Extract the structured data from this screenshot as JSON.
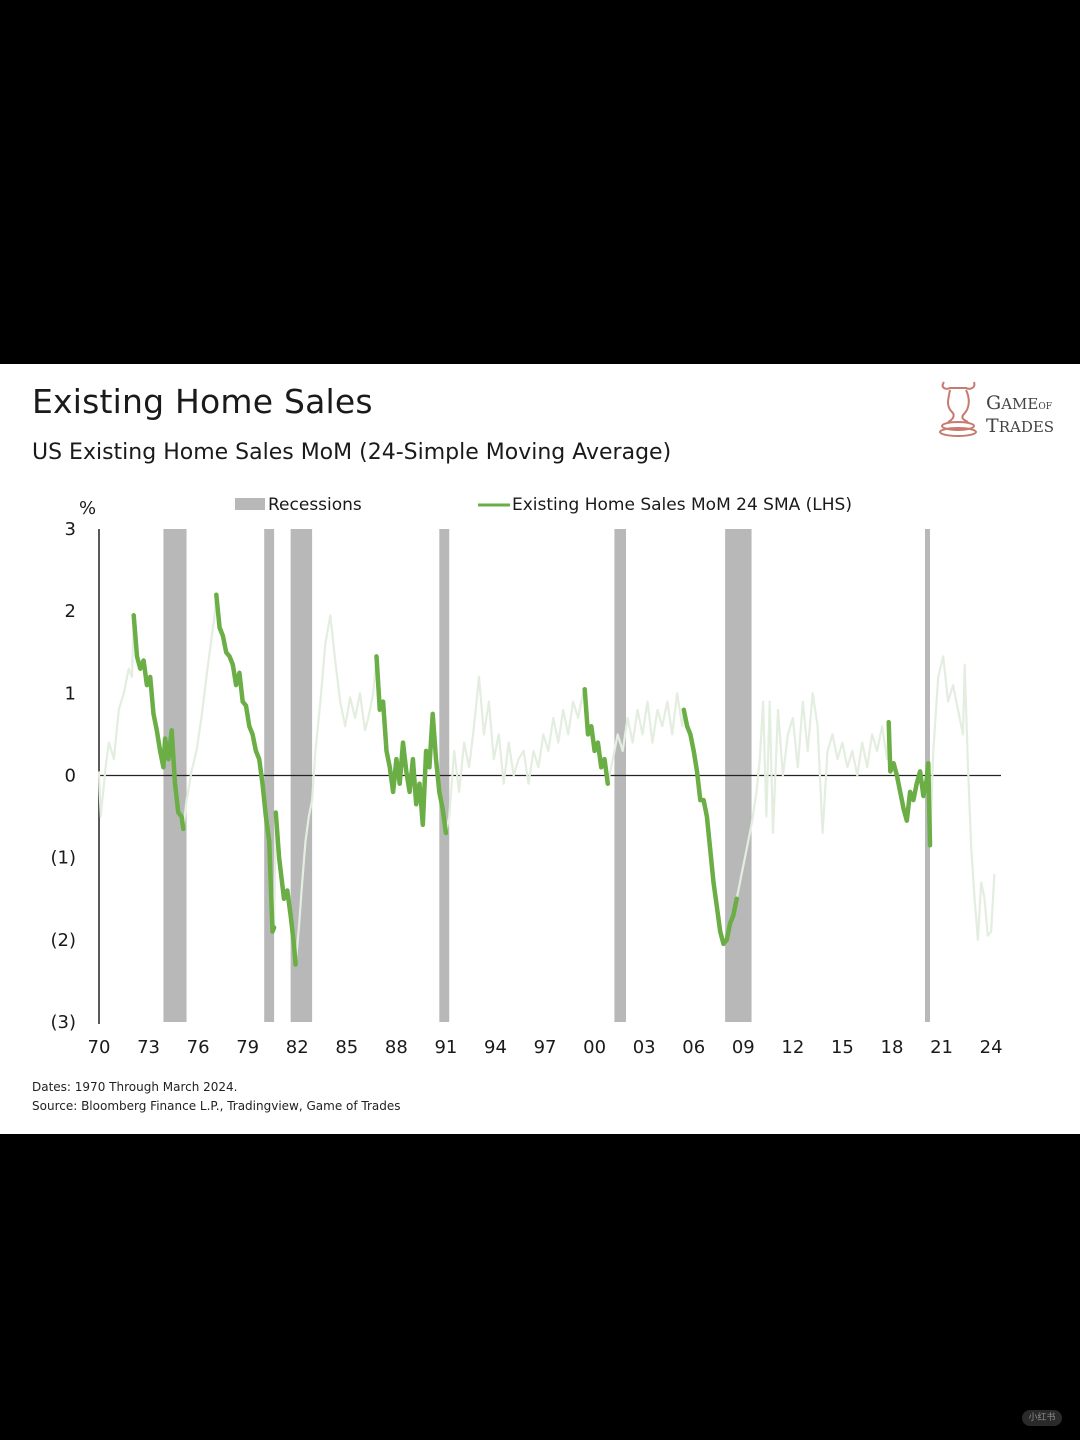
{
  "header": {
    "title": "Existing Home Sales",
    "subtitle": "US Existing Home Sales MoM (24-Simple Moving Average)"
  },
  "logo": {
    "line1_big": "G",
    "line1_rest": "AME",
    "line1_small": "OF",
    "line2_big": "T",
    "line2_rest": "RADES"
  },
  "footnotes": {
    "dates": "Dates: 1970 Through March 2024.",
    "source": "Source: Bloomberg Finance L.P., Tradingview, Game of Trades"
  },
  "watermark": "小红书",
  "chart_data": {
    "type": "line",
    "unit_label": "%",
    "ylim": [
      -3,
      3
    ],
    "xlim": [
      1970,
      2024.6
    ],
    "y_ticks": [
      {
        "value": 3,
        "label": "3"
      },
      {
        "value": 2,
        "label": "2"
      },
      {
        "value": 1,
        "label": "1"
      },
      {
        "value": 0,
        "label": "0"
      },
      {
        "value": -1,
        "label": "(1)"
      },
      {
        "value": -2,
        "label": "(2)"
      },
      {
        "value": -3,
        "label": "(3)"
      }
    ],
    "x_ticks": [
      {
        "value": 1970,
        "label": "70"
      },
      {
        "value": 1973,
        "label": "73"
      },
      {
        "value": 1976,
        "label": "76"
      },
      {
        "value": 1979,
        "label": "79"
      },
      {
        "value": 1982,
        "label": "82"
      },
      {
        "value": 1985,
        "label": "85"
      },
      {
        "value": 1988,
        "label": "88"
      },
      {
        "value": 1991,
        "label": "91"
      },
      {
        "value": 1994,
        "label": "94"
      },
      {
        "value": 1997,
        "label": "97"
      },
      {
        "value": 2000,
        "label": "00"
      },
      {
        "value": 2003,
        "label": "03"
      },
      {
        "value": 2006,
        "label": "06"
      },
      {
        "value": 2009,
        "label": "09"
      },
      {
        "value": 2012,
        "label": "12"
      },
      {
        "value": 2015,
        "label": "15"
      },
      {
        "value": 2018,
        "label": "18"
      },
      {
        "value": 2021,
        "label": "21"
      },
      {
        "value": 2024,
        "label": "24"
      }
    ],
    "legend": [
      {
        "name": "Recessions",
        "color": "#b8b8b8",
        "kind": "box"
      },
      {
        "name": "Existing Home Sales MoM 24 SMA (LHS)",
        "color": "#6aae45",
        "kind": "line"
      }
    ],
    "recessions": [
      [
        1973.9,
        1975.3
      ],
      [
        1980.0,
        1980.6
      ],
      [
        1981.6,
        1982.9
      ],
      [
        1990.6,
        1991.2
      ],
      [
        2001.2,
        2001.9
      ],
      [
        2007.9,
        2009.5
      ],
      [
        2020.0,
        2020.3
      ]
    ],
    "highlight_color": "#6aae45",
    "faint_color": "#e3eee0",
    "series": {
      "name": "Existing Home Sales MoM 24 SMA (LHS)",
      "points": [
        [
          1970.0,
          0.05
        ],
        [
          1970.1,
          -0.5
        ],
        [
          1970.4,
          0.1
        ],
        [
          1970.6,
          0.4
        ],
        [
          1970.9,
          0.2
        ],
        [
          1971.2,
          0.8
        ],
        [
          1971.5,
          1.0
        ],
        [
          1971.8,
          1.3
        ],
        [
          1972.0,
          1.2
        ],
        [
          1972.1,
          1.95
        ],
        [
          1972.3,
          1.45
        ],
        [
          1972.5,
          1.3
        ],
        [
          1972.7,
          1.4
        ],
        [
          1972.9,
          1.1
        ],
        [
          1973.1,
          1.2
        ],
        [
          1973.3,
          0.75
        ],
        [
          1973.5,
          0.55
        ],
        [
          1973.7,
          0.3
        ],
        [
          1973.9,
          0.1
        ],
        [
          1974.0,
          0.45
        ],
        [
          1974.2,
          0.2
        ],
        [
          1974.4,
          0.55
        ],
        [
          1974.6,
          -0.1
        ],
        [
          1974.8,
          -0.45
        ],
        [
          1975.0,
          -0.5
        ],
        [
          1975.1,
          -0.65
        ],
        [
          1975.3,
          -0.3
        ],
        [
          1975.6,
          0.05
        ],
        [
          1975.9,
          0.3
        ],
        [
          1976.2,
          0.7
        ],
        [
          1976.5,
          1.2
        ],
        [
          1976.8,
          1.65
        ],
        [
          1977.0,
          1.95
        ],
        [
          1977.1,
          2.2
        ],
        [
          1977.3,
          1.8
        ],
        [
          1977.5,
          1.7
        ],
        [
          1977.7,
          1.5
        ],
        [
          1977.9,
          1.45
        ],
        [
          1978.1,
          1.35
        ],
        [
          1978.3,
          1.1
        ],
        [
          1978.5,
          1.25
        ],
        [
          1978.7,
          0.9
        ],
        [
          1978.9,
          0.85
        ],
        [
          1979.1,
          0.6
        ],
        [
          1979.3,
          0.5
        ],
        [
          1979.5,
          0.3
        ],
        [
          1979.7,
          0.2
        ],
        [
          1979.9,
          -0.1
        ],
        [
          1980.1,
          -0.5
        ],
        [
          1980.3,
          -0.8
        ],
        [
          1980.5,
          -1.9
        ],
        [
          1980.6,
          -1.85
        ],
        [
          1980.7,
          -0.45
        ],
        [
          1980.9,
          -1.0
        ],
        [
          1981.2,
          -1.5
        ],
        [
          1981.4,
          -1.4
        ],
        [
          1981.6,
          -1.7
        ],
        [
          1981.8,
          -2.05
        ],
        [
          1981.9,
          -2.3
        ],
        [
          1982.1,
          -1.85
        ],
        [
          1982.3,
          -1.3
        ],
        [
          1982.5,
          -0.8
        ],
        [
          1982.7,
          -0.5
        ],
        [
          1982.9,
          -0.3
        ],
        [
          1983.1,
          0.3
        ],
        [
          1983.4,
          0.9
        ],
        [
          1983.7,
          1.6
        ],
        [
          1984.0,
          1.95
        ],
        [
          1984.3,
          1.4
        ],
        [
          1984.6,
          0.9
        ],
        [
          1984.9,
          0.6
        ],
        [
          1985.2,
          0.95
        ],
        [
          1985.5,
          0.7
        ],
        [
          1985.8,
          1.0
        ],
        [
          1986.1,
          0.55
        ],
        [
          1986.3,
          0.7
        ],
        [
          1986.6,
          1.0
        ],
        [
          1986.8,
          1.45
        ],
        [
          1987.0,
          0.8
        ],
        [
          1987.2,
          0.9
        ],
        [
          1987.4,
          0.3
        ],
        [
          1987.6,
          0.1
        ],
        [
          1987.8,
          -0.2
        ],
        [
          1988.0,
          0.2
        ],
        [
          1988.2,
          -0.1
        ],
        [
          1988.4,
          0.4
        ],
        [
          1988.6,
          0.05
        ],
        [
          1988.8,
          -0.2
        ],
        [
          1989.0,
          0.2
        ],
        [
          1989.2,
          -0.35
        ],
        [
          1989.4,
          -0.1
        ],
        [
          1989.6,
          -0.6
        ],
        [
          1989.8,
          0.3
        ],
        [
          1990.0,
          0.1
        ],
        [
          1990.2,
          0.75
        ],
        [
          1990.4,
          0.2
        ],
        [
          1990.6,
          -0.2
        ],
        [
          1990.8,
          -0.4
        ],
        [
          1991.0,
          -0.7
        ],
        [
          1991.2,
          -0.5
        ],
        [
          1991.5,
          0.3
        ],
        [
          1991.8,
          -0.2
        ],
        [
          1992.1,
          0.4
        ],
        [
          1992.4,
          0.1
        ],
        [
          1992.7,
          0.6
        ],
        [
          1993.0,
          1.2
        ],
        [
          1993.3,
          0.5
        ],
        [
          1993.6,
          0.9
        ],
        [
          1993.9,
          0.2
        ],
        [
          1994.2,
          0.5
        ],
        [
          1994.5,
          -0.1
        ],
        [
          1994.8,
          0.4
        ],
        [
          1995.1,
          0.0
        ],
        [
          1995.4,
          0.2
        ],
        [
          1995.7,
          0.3
        ],
        [
          1996.0,
          -0.1
        ],
        [
          1996.3,
          0.3
        ],
        [
          1996.6,
          0.1
        ],
        [
          1996.9,
          0.5
        ],
        [
          1997.2,
          0.3
        ],
        [
          1997.5,
          0.7
        ],
        [
          1997.8,
          0.4
        ],
        [
          1998.1,
          0.8
        ],
        [
          1998.4,
          0.5
        ],
        [
          1998.7,
          0.9
        ],
        [
          1999.0,
          0.7
        ],
        [
          1999.3,
          1.0
        ],
        [
          1999.4,
          1.05
        ],
        [
          1999.6,
          0.5
        ],
        [
          1999.8,
          0.6
        ],
        [
          2000.0,
          0.3
        ],
        [
          2000.2,
          0.4
        ],
        [
          2000.4,
          0.1
        ],
        [
          2000.6,
          0.2
        ],
        [
          2000.8,
          -0.1
        ],
        [
          2001.1,
          0.2
        ],
        [
          2001.4,
          0.5
        ],
        [
          2001.7,
          0.3
        ],
        [
          2002.0,
          0.7
        ],
        [
          2002.3,
          0.4
        ],
        [
          2002.6,
          0.8
        ],
        [
          2002.9,
          0.5
        ],
        [
          2003.2,
          0.9
        ],
        [
          2003.5,
          0.4
        ],
        [
          2003.8,
          0.8
        ],
        [
          2004.1,
          0.6
        ],
        [
          2004.4,
          0.9
        ],
        [
          2004.7,
          0.5
        ],
        [
          2005.0,
          1.0
        ],
        [
          2005.3,
          0.6
        ],
        [
          2005.4,
          0.8
        ],
        [
          2005.6,
          0.6
        ],
        [
          2005.8,
          0.5
        ],
        [
          2006.0,
          0.3
        ],
        [
          2006.2,
          0.05
        ],
        [
          2006.4,
          -0.3
        ],
        [
          2006.6,
          -0.3
        ],
        [
          2006.8,
          -0.5
        ],
        [
          2007.0,
          -0.9
        ],
        [
          2007.2,
          -1.3
        ],
        [
          2007.4,
          -1.6
        ],
        [
          2007.6,
          -1.9
        ],
        [
          2007.8,
          -2.05
        ],
        [
          2008.0,
          -2.0
        ],
        [
          2008.2,
          -1.8
        ],
        [
          2008.4,
          -1.7
        ],
        [
          2008.6,
          -1.5
        ],
        [
          2008.9,
          -1.2
        ],
        [
          2009.2,
          -0.9
        ],
        [
          2009.5,
          -0.6
        ],
        [
          2009.8,
          -0.2
        ],
        [
          2010.0,
          0.2
        ],
        [
          2010.2,
          0.9
        ],
        [
          2010.4,
          -0.5
        ],
        [
          2010.6,
          0.9
        ],
        [
          2010.8,
          -0.7
        ],
        [
          2011.1,
          0.8
        ],
        [
          2011.4,
          0.0
        ],
        [
          2011.7,
          0.5
        ],
        [
          2012.0,
          0.7
        ],
        [
          2012.3,
          0.1
        ],
        [
          2012.6,
          0.9
        ],
        [
          2012.9,
          0.3
        ],
        [
          2013.2,
          1.0
        ],
        [
          2013.5,
          0.6
        ],
        [
          2013.8,
          -0.7
        ],
        [
          2014.1,
          0.3
        ],
        [
          2014.4,
          0.5
        ],
        [
          2014.7,
          0.2
        ],
        [
          2015.0,
          0.4
        ],
        [
          2015.3,
          0.1
        ],
        [
          2015.6,
          0.3
        ],
        [
          2015.9,
          0.0
        ],
        [
          2016.2,
          0.4
        ],
        [
          2016.5,
          0.1
        ],
        [
          2016.8,
          0.5
        ],
        [
          2017.1,
          0.3
        ],
        [
          2017.4,
          0.6
        ],
        [
          2017.7,
          0.2
        ],
        [
          2017.8,
          0.65
        ],
        [
          2017.9,
          0.05
        ],
        [
          2018.1,
          0.15
        ],
        [
          2018.3,
          0.0
        ],
        [
          2018.5,
          -0.2
        ],
        [
          2018.7,
          -0.4
        ],
        [
          2018.9,
          -0.55
        ],
        [
          2019.1,
          -0.2
        ],
        [
          2019.3,
          -0.3
        ],
        [
          2019.5,
          -0.1
        ],
        [
          2019.7,
          0.05
        ],
        [
          2019.9,
          -0.25
        ],
        [
          2020.1,
          -0.05
        ],
        [
          2020.2,
          0.15
        ],
        [
          2020.3,
          -0.85
        ],
        [
          2020.5,
          0.3
        ],
        [
          2020.8,
          1.2
        ],
        [
          2021.1,
          1.45
        ],
        [
          2021.4,
          0.9
        ],
        [
          2021.7,
          1.1
        ],
        [
          2022.0,
          0.8
        ],
        [
          2022.3,
          0.5
        ],
        [
          2022.4,
          1.35
        ],
        [
          2022.6,
          0.1
        ],
        [
          2022.8,
          -0.9
        ],
        [
          2023.0,
          -1.5
        ],
        [
          2023.2,
          -2.0
        ],
        [
          2023.4,
          -1.3
        ],
        [
          2023.6,
          -1.5
        ],
        [
          2023.8,
          -1.95
        ],
        [
          2024.0,
          -1.9
        ],
        [
          2024.2,
          -1.2
        ]
      ],
      "highlighted_ranges": [
        [
          1972.1,
          1975.1
        ],
        [
          1977.1,
          1980.6
        ],
        [
          1980.7,
          1981.9
        ],
        [
          1986.8,
          1991.0
        ],
        [
          1999.4,
          2000.8
        ],
        [
          2005.4,
          2008.6
        ],
        [
          2017.8,
          2020.3
        ]
      ]
    }
  }
}
